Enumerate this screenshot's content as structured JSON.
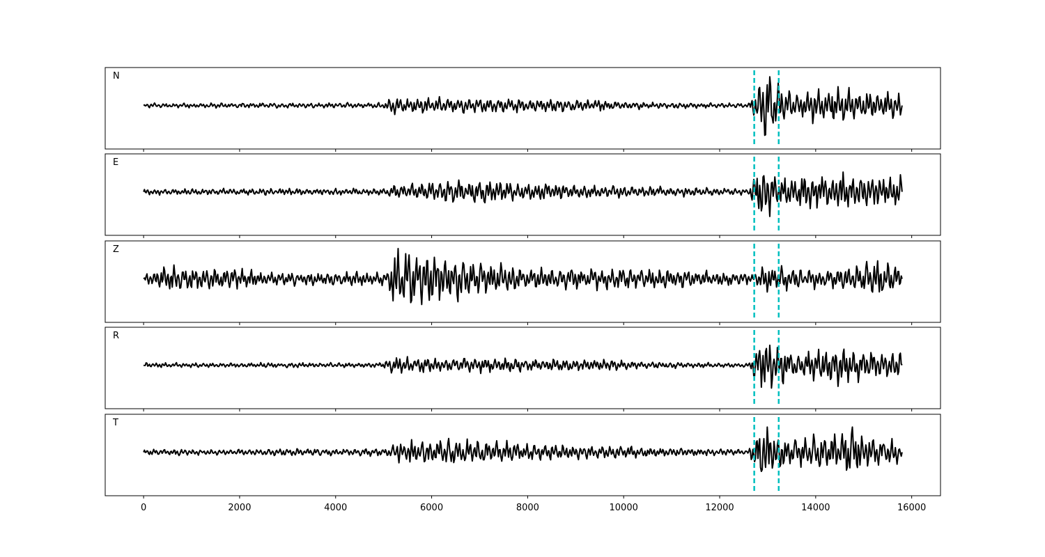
{
  "chart_data": {
    "type": "line",
    "title": "",
    "xlabel": "",
    "ylabel": "",
    "xlim": [
      -800,
      16600
    ],
    "x_ticks": [
      0,
      2000,
      4000,
      6000,
      8000,
      10000,
      12000,
      14000,
      16000
    ],
    "x_tick_labels": [
      "0",
      "2000",
      "4000",
      "6000",
      "8000",
      "10000",
      "12000",
      "14000",
      "16000"
    ],
    "shared_x": true,
    "grid": false,
    "line_color": "#000000",
    "marker_color": "#00bfbf",
    "markers": [
      12720,
      13230
    ],
    "marker_style": "dashed",
    "panels": [
      {
        "label": "N",
        "x_range": [
          0,
          15800
        ],
        "ylim": [
          -1,
          1
        ],
        "envelope": [
          {
            "x": 0,
            "amp": 0.06
          },
          {
            "x": 5000,
            "amp": 0.07
          },
          {
            "x": 5200,
            "amp": 0.25
          },
          {
            "x": 6000,
            "amp": 0.22
          },
          {
            "x": 9600,
            "amp": 0.15
          },
          {
            "x": 10500,
            "amp": 0.09
          },
          {
            "x": 12600,
            "amp": 0.05
          },
          {
            "x": 12900,
            "amp": 0.85
          },
          {
            "x": 13200,
            "amp": 0.55
          },
          {
            "x": 13600,
            "amp": 0.35
          },
          {
            "x": 14600,
            "amp": 0.55
          },
          {
            "x": 15000,
            "amp": 0.4
          },
          {
            "x": 15800,
            "amp": 0.4
          }
        ]
      },
      {
        "label": "E",
        "x_range": [
          0,
          15800
        ],
        "ylim": [
          -1,
          1
        ],
        "envelope": [
          {
            "x": 0,
            "amp": 0.08
          },
          {
            "x": 5100,
            "amp": 0.1
          },
          {
            "x": 5200,
            "amp": 0.2
          },
          {
            "x": 6500,
            "amp": 0.32
          },
          {
            "x": 9000,
            "amp": 0.2
          },
          {
            "x": 12600,
            "amp": 0.08
          },
          {
            "x": 12850,
            "amp": 0.9
          },
          {
            "x": 13200,
            "amp": 0.45
          },
          {
            "x": 13600,
            "amp": 0.5
          },
          {
            "x": 15000,
            "amp": 0.5
          },
          {
            "x": 15800,
            "amp": 0.45
          }
        ]
      },
      {
        "label": "Z",
        "x_range": [
          0,
          15800
        ],
        "ylim": [
          -1,
          1
        ],
        "envelope": [
          {
            "x": 0,
            "amp": 0.1
          },
          {
            "x": 400,
            "amp": 0.35
          },
          {
            "x": 1400,
            "amp": 0.3
          },
          {
            "x": 3000,
            "amp": 0.18
          },
          {
            "x": 5100,
            "amp": 0.2
          },
          {
            "x": 5200,
            "amp": 0.85
          },
          {
            "x": 6600,
            "amp": 0.6
          },
          {
            "x": 8000,
            "amp": 0.3
          },
          {
            "x": 11000,
            "amp": 0.28
          },
          {
            "x": 12700,
            "amp": 0.15
          },
          {
            "x": 13000,
            "amp": 0.4
          },
          {
            "x": 14000,
            "amp": 0.25
          },
          {
            "x": 15500,
            "amp": 0.5
          },
          {
            "x": 15800,
            "amp": 0.3
          }
        ]
      },
      {
        "label": "R",
        "x_range": [
          0,
          15800
        ],
        "ylim": [
          -1,
          1
        ],
        "envelope": [
          {
            "x": 0,
            "amp": 0.06
          },
          {
            "x": 5000,
            "amp": 0.07
          },
          {
            "x": 5200,
            "amp": 0.25
          },
          {
            "x": 6000,
            "amp": 0.22
          },
          {
            "x": 9600,
            "amp": 0.15
          },
          {
            "x": 10500,
            "amp": 0.09
          },
          {
            "x": 12600,
            "amp": 0.05
          },
          {
            "x": 12900,
            "amp": 0.85
          },
          {
            "x": 13200,
            "amp": 0.6
          },
          {
            "x": 13600,
            "amp": 0.35
          },
          {
            "x": 14600,
            "amp": 0.55
          },
          {
            "x": 15000,
            "amp": 0.4
          },
          {
            "x": 15800,
            "amp": 0.4
          }
        ]
      },
      {
        "label": "T",
        "x_range": [
          0,
          15800
        ],
        "ylim": [
          -1,
          1
        ],
        "envelope": [
          {
            "x": 0,
            "amp": 0.08
          },
          {
            "x": 5100,
            "amp": 0.1
          },
          {
            "x": 5300,
            "amp": 0.32
          },
          {
            "x": 6500,
            "amp": 0.35
          },
          {
            "x": 9000,
            "amp": 0.2
          },
          {
            "x": 12600,
            "amp": 0.07
          },
          {
            "x": 12900,
            "amp": 0.9
          },
          {
            "x": 13200,
            "amp": 0.6
          },
          {
            "x": 13600,
            "amp": 0.35
          },
          {
            "x": 14700,
            "amp": 0.7
          },
          {
            "x": 15000,
            "amp": 0.45
          },
          {
            "x": 15800,
            "amp": 0.3
          }
        ]
      }
    ]
  }
}
